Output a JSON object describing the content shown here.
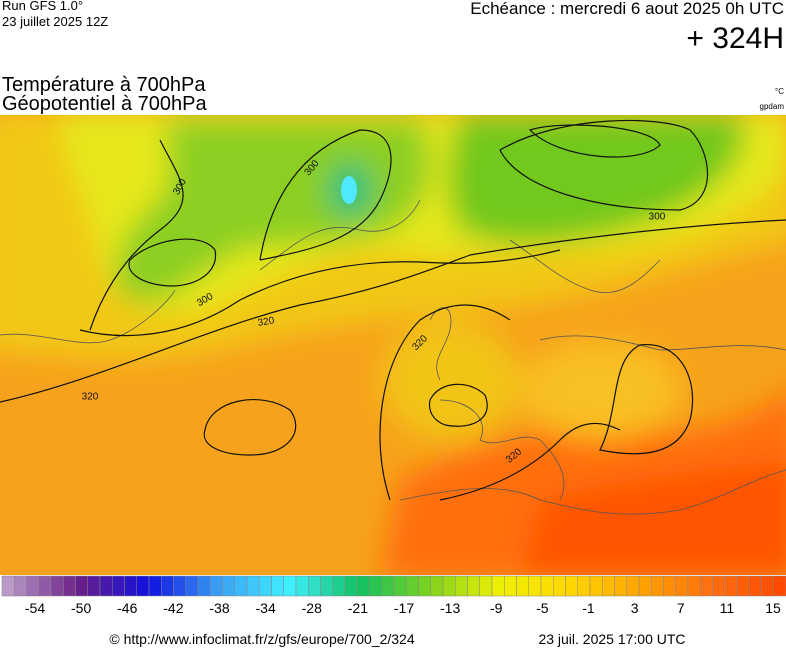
{
  "header": {
    "run": "Run GFS 1.0°",
    "run_date": "23 juillet 2025 12Z",
    "valid": "Echéance : mercredi 6 aout 2025 0h UTC",
    "lead": "+ 324H",
    "title_line1": "Température à 700hPa",
    "title_line2": "Géopotentiel à 700hPa",
    "unit1": "°C",
    "unit2": "gpdam"
  },
  "map": {
    "contour_labels": [
      "300",
      "300",
      "300",
      "320",
      "320",
      "300",
      "320",
      "320"
    ]
  },
  "colorbar": {
    "stops": [
      "#b99ac9",
      "#6a1f87",
      "#1010e0",
      "#3aa0f5",
      "#40f0ff",
      "#10c060",
      "#7ed21e",
      "#eef000",
      "#ffd800",
      "#ffa400",
      "#ff7010",
      "#ff4a00"
    ],
    "labels": [
      -54,
      -50,
      -46,
      -42,
      -38,
      -34,
      -28,
      -21,
      -17,
      -13,
      -9,
      -5,
      -1,
      3,
      7,
      11,
      15
    ]
  },
  "footer": {
    "url": "© http://www.infoclimat.fr/z/gfs/europe/700_2/324",
    "timestamp": "23 juil. 2025 17:00 UTC"
  }
}
